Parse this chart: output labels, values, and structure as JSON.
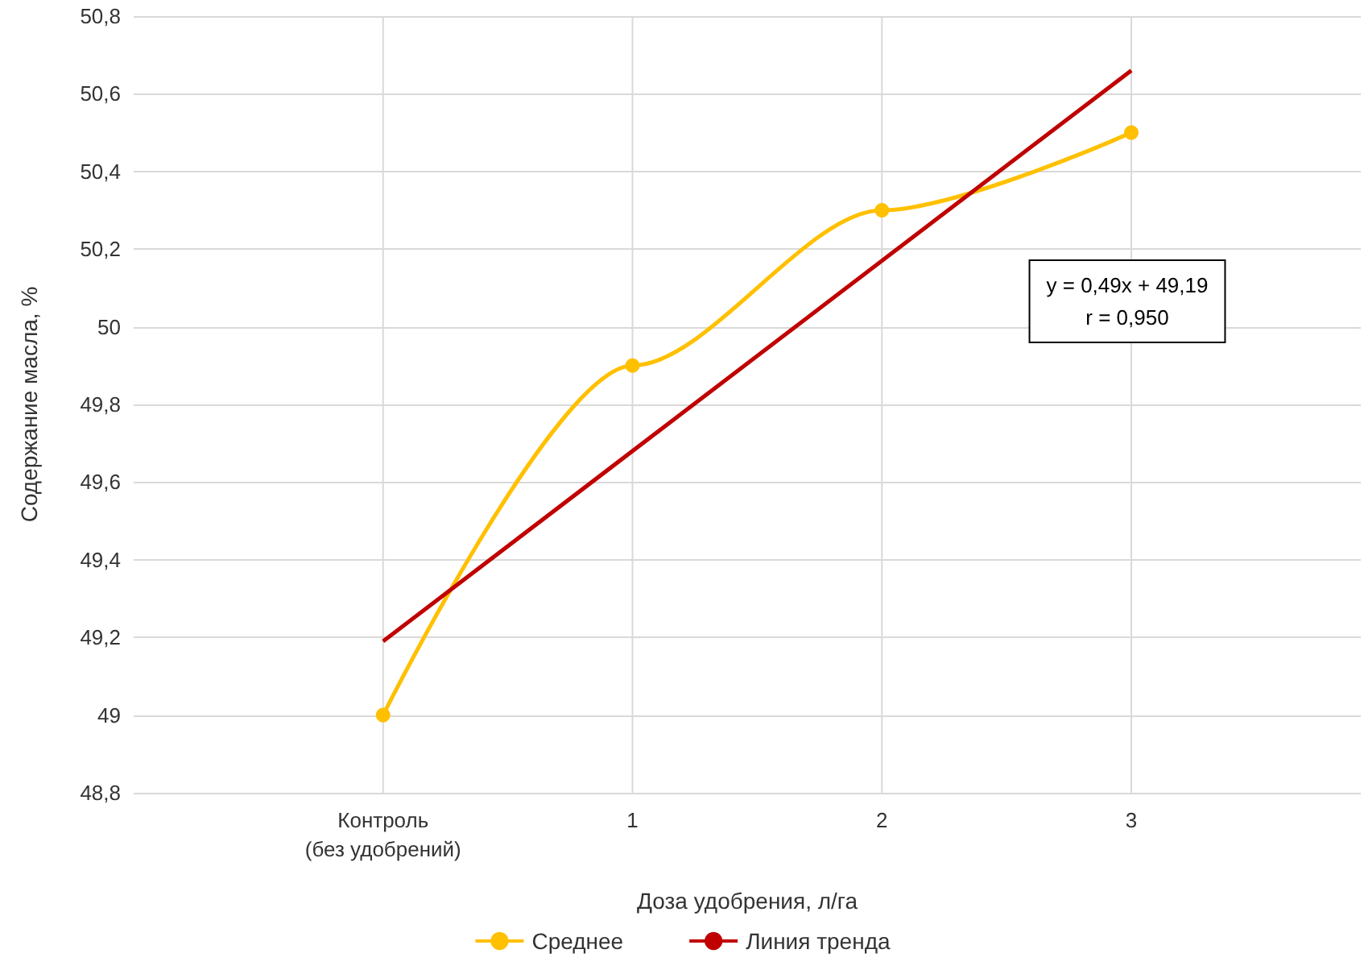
{
  "chart_data": {
    "type": "line",
    "xlabel": "Доза удобрения, л/га",
    "ylabel": "Содержание масла, %",
    "categories": [
      "Контроль\n(без удобрений)",
      "1",
      "2",
      "3"
    ],
    "series": [
      {
        "name": "Среднее",
        "color": "#ffc000",
        "values": [
          49,
          49.9,
          50.3,
          50.5
        ],
        "marker": "circle"
      },
      {
        "name": "Линия тренда",
        "color": "#c00000",
        "type": "line",
        "x": [
          "Контроль\n(без удобрений)",
          "3"
        ],
        "values": [
          49.19,
          50.66
        ],
        "marker": "none"
      }
    ],
    "ylim": [
      48.8,
      50.8
    ],
    "yticks": [
      {
        "value": 48.8,
        "label": "48,8"
      },
      {
        "value": 49,
        "label": "49"
      },
      {
        "value": 49.2,
        "label": "49,2"
      },
      {
        "value": 49.4,
        "label": "49,4"
      },
      {
        "value": 49.6,
        "label": "49,6"
      },
      {
        "value": 49.8,
        "label": "49,8"
      },
      {
        "value": 50,
        "label": "50"
      },
      {
        "value": 50.2,
        "label": "50,2"
      },
      {
        "value": 50.4,
        "label": "50,4"
      },
      {
        "value": 50.6,
        "label": "50,6"
      },
      {
        "value": 50.8,
        "label": "50,8"
      }
    ],
    "annotations": [
      "y = 0,49x + 49,19\nr = 0,950"
    ],
    "grid": true,
    "legend": "bottom"
  }
}
